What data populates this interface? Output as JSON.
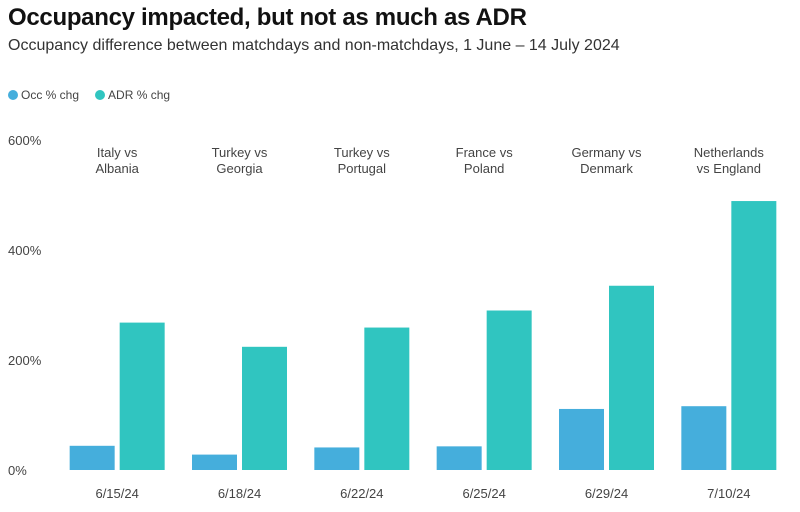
{
  "chart_data": {
    "type": "bar",
    "title": "Occupancy impacted, but not as much as ADR",
    "subtitle": "Occupancy difference between matchdays and non-matchdays, 1 June – 14 July 2024",
    "xlabel": "",
    "ylabel": "",
    "ylim": [
      0,
      600
    ],
    "yticks": [
      0,
      200,
      400,
      600
    ],
    "ytick_labels": [
      "0%",
      "200%",
      "400%",
      "600%"
    ],
    "grid": false,
    "legend_position": "top-left",
    "categories": [
      "6/15/24",
      "6/18/24",
      "6/22/24",
      "6/25/24",
      "6/29/24",
      "7/10/24"
    ],
    "annotations": [
      [
        "Italy vs",
        "Albania"
      ],
      [
        "Turkey vs",
        "Georgia"
      ],
      [
        "Turkey vs",
        "Portugal"
      ],
      [
        "France vs",
        "Poland"
      ],
      [
        "Germany vs",
        "Denmark"
      ],
      [
        "Netherlands",
        "vs England"
      ]
    ],
    "series": [
      {
        "name": "Occ % chg",
        "color": "#45aedc",
        "values": [
          44,
          28,
          41,
          43,
          111,
          116
        ]
      },
      {
        "name": "ADR % chg",
        "color": "#30c5c0",
        "values": [
          268,
          224,
          259,
          290,
          335,
          489
        ]
      }
    ]
  }
}
